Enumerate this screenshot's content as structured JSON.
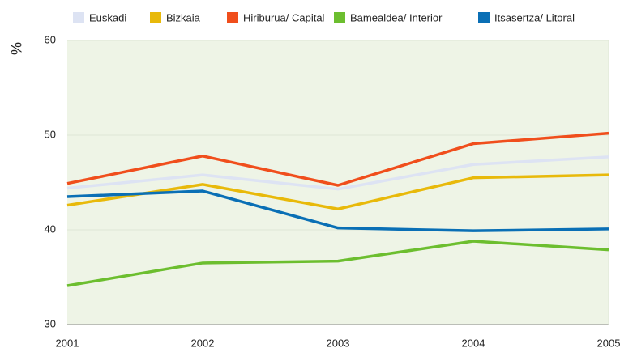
{
  "chart_data": {
    "type": "line",
    "y_label": "%",
    "x": [
      2001,
      2002,
      2003,
      2004,
      2005
    ],
    "xlim": [
      2001,
      2005
    ],
    "xticks": [
      2001,
      2002,
      2003,
      2004,
      2005
    ],
    "ylim": [
      30,
      60
    ],
    "yticks": [
      30,
      40,
      50,
      60
    ],
    "grid": true,
    "series": [
      {
        "name": "Euskadi",
        "color": "#dde3f3",
        "values": [
          44.4,
          45.8,
          44.3,
          46.9,
          47.7
        ]
      },
      {
        "name": "Bizkaia",
        "color": "#e8b90a",
        "values": [
          42.6,
          44.8,
          42.2,
          45.5,
          45.8
        ]
      },
      {
        "name": "Hiriburua/ Capital",
        "color": "#f04e1c",
        "values": [
          44.9,
          47.8,
          44.7,
          49.1,
          50.2
        ]
      },
      {
        "name": "Bamealdea/ Interior",
        "color": "#6cbe2f",
        "values": [
          34.1,
          36.5,
          36.7,
          38.8,
          37.9
        ]
      },
      {
        "name": "Itsasertza/ Litoral",
        "color": "#0a6fb5",
        "values": [
          43.5,
          44.1,
          40.2,
          39.9,
          40.1
        ]
      }
    ]
  }
}
